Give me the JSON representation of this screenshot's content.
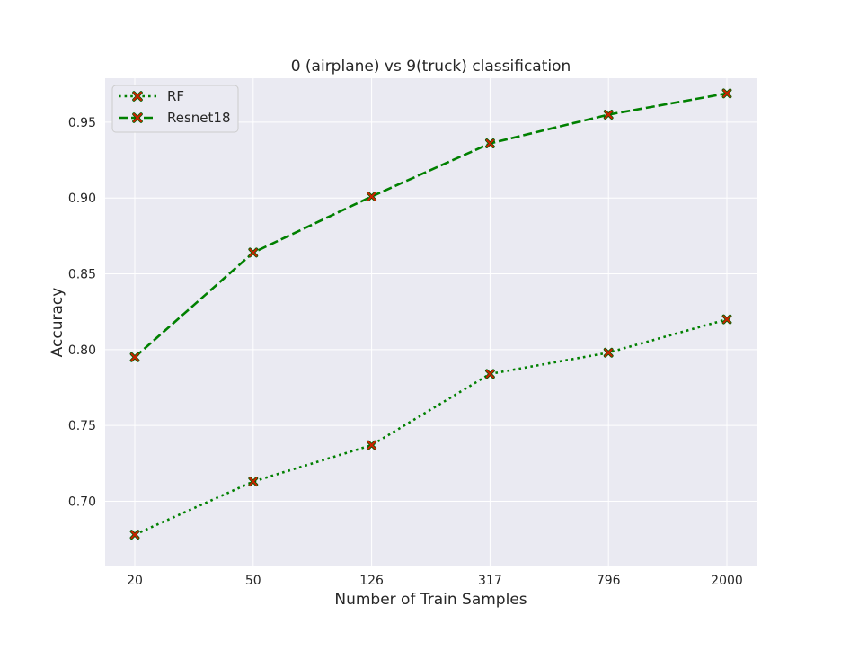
{
  "chart_data": {
    "type": "line",
    "title": "0 (airplane) vs 9(truck) classification",
    "xlabel": "Number of Train Samples",
    "ylabel": "Accuracy",
    "categories": [
      "20",
      "50",
      "126",
      "317",
      "796",
      "2000"
    ],
    "ylim": [
      0.657,
      0.979
    ],
    "yticks": [
      "0.70",
      "0.75",
      "0.80",
      "0.85",
      "0.90",
      "0.95"
    ],
    "grid": true,
    "legend_position": "top-left",
    "series": [
      {
        "name": "RF",
        "values": [
          0.678,
          0.713,
          0.737,
          0.784,
          0.798,
          0.82
        ],
        "color": "#008000",
        "linestyle": "dotted",
        "marker": "x-filled",
        "marker_color": "#cc2200"
      },
      {
        "name": "Resnet18",
        "values": [
          0.795,
          0.864,
          0.901,
          0.936,
          0.955,
          0.969
        ],
        "color": "#008000",
        "linestyle": "dashed",
        "marker": "x-filled",
        "marker_color": "#cc2200"
      }
    ],
    "colors": {
      "background": "#eaeaf2",
      "grid": "#ffffff"
    }
  }
}
